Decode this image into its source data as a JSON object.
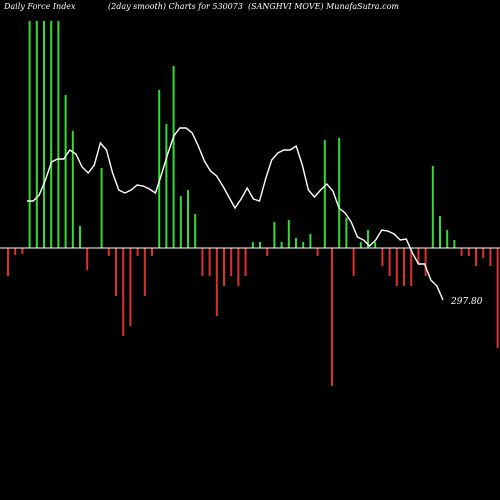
{
  "header": {
    "left": "Daily Force  Index",
    "middle": "(2day smooth) Charts for 530073",
    "right": "(SANGHVI MOVE) MunafaSutra.com"
  },
  "chart_data": {
    "type": "bar",
    "title": "(2day smooth) Charts for 530073",
    "values": [
      -28,
      -7,
      -6,
      227,
      227,
      227,
      227,
      227,
      153,
      117,
      22,
      -22,
      0,
      80,
      -8,
      -48,
      -88,
      -78,
      -8,
      -48,
      -8,
      158,
      124,
      182,
      52,
      58,
      34,
      -28,
      -28,
      -68,
      -38,
      -28,
      -38,
      -28,
      6,
      6,
      -8,
      26,
      6,
      28,
      10,
      6,
      14,
      -8,
      108,
      -138,
      110,
      30,
      -28,
      6,
      18,
      6,
      -18,
      -28,
      -38,
      -38,
      -38,
      -16,
      -28,
      82,
      32,
      18,
      8,
      -8,
      -8,
      -18,
      -10,
      -18,
      -100
    ],
    "colors": {
      "positive": "#33dd33",
      "negative": "#e03030",
      "line": "#ffffff",
      "zero_line": "#ffffff",
      "background": "#000000"
    },
    "line_values": [
      47,
      47,
      53,
      68,
      86,
      89,
      89,
      98,
      94,
      81,
      75,
      83,
      105,
      98,
      75,
      58,
      55,
      58,
      63,
      62,
      59,
      55,
      74,
      94,
      112,
      120,
      120,
      115,
      102,
      87,
      77,
      72,
      62,
      51,
      40,
      49,
      60,
      49,
      47,
      69,
      88,
      95,
      98,
      98,
      102,
      83,
      58,
      51,
      58,
      64,
      57,
      40,
      35,
      26,
      11,
      8,
      2,
      8,
      18,
      17,
      14,
      8,
      9,
      -5,
      -16,
      -16,
      -32,
      -38,
      -52
    ],
    "last_label": "297.80"
  }
}
